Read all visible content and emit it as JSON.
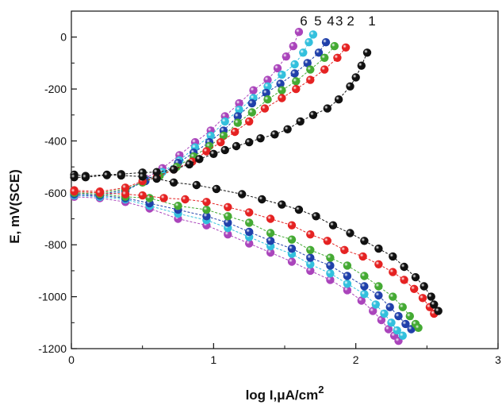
{
  "chart_data": {
    "type": "scatter",
    "xlabel": "log I,μA/cm",
    "xlabel_sup": "2",
    "ylabel": "E, mV(SCE)",
    "xlim": [
      0,
      3
    ],
    "ylim": [
      -1200,
      100
    ],
    "x_ticks": [
      0,
      1,
      2,
      3
    ],
    "y_ticks": [
      0,
      -200,
      -400,
      -600,
      -800,
      -1000,
      -1200
    ],
    "curve_labels": [
      "6",
      "5",
      "4",
      "3",
      "2",
      "1"
    ],
    "grid": false,
    "series": [
      {
        "name": "1",
        "color": "#111111",
        "anodic": [
          [
            0.02,
            -530
          ],
          [
            0.1,
            -535
          ],
          [
            0.25,
            -530
          ],
          [
            0.35,
            -528
          ],
          [
            0.5,
            -522
          ],
          [
            0.6,
            -520
          ],
          [
            0.72,
            -510
          ],
          [
            0.83,
            -490
          ],
          [
            0.9,
            -470
          ],
          [
            1.0,
            -450
          ],
          [
            1.08,
            -435
          ],
          [
            1.16,
            -420
          ],
          [
            1.25,
            -405
          ],
          [
            1.33,
            -390
          ],
          [
            1.43,
            -375
          ],
          [
            1.52,
            -355
          ],
          [
            1.61,
            -325
          ],
          [
            1.7,
            -300
          ],
          [
            1.8,
            -275
          ],
          [
            1.88,
            -240
          ],
          [
            1.96,
            -190
          ],
          [
            2.0,
            -155
          ],
          [
            2.04,
            -110
          ],
          [
            2.08,
            -60
          ]
        ],
        "cathodic": [
          [
            0.02,
            -540
          ],
          [
            0.1,
            -540
          ],
          [
            0.25,
            -532
          ],
          [
            0.35,
            -533
          ],
          [
            0.5,
            -537
          ],
          [
            0.6,
            -545
          ],
          [
            0.72,
            -560
          ],
          [
            0.88,
            -570
          ],
          [
            1.02,
            -585
          ],
          [
            1.2,
            -605
          ],
          [
            1.34,
            -625
          ],
          [
            1.48,
            -645
          ],
          [
            1.6,
            -665
          ],
          [
            1.72,
            -690
          ],
          [
            1.84,
            -725
          ],
          [
            1.96,
            -755
          ],
          [
            2.06,
            -785
          ],
          [
            2.16,
            -815
          ],
          [
            2.26,
            -845
          ],
          [
            2.34,
            -885
          ],
          [
            2.42,
            -925
          ],
          [
            2.48,
            -960
          ],
          [
            2.53,
            -1000
          ],
          [
            2.55,
            -1030
          ],
          [
            2.58,
            -1055
          ]
        ]
      },
      {
        "name": "2",
        "color": "#e52222",
        "anodic": [
          [
            0.02,
            -590
          ],
          [
            0.2,
            -595
          ],
          [
            0.38,
            -580
          ],
          [
            0.5,
            -555
          ],
          [
            0.6,
            -540
          ],
          [
            0.72,
            -510
          ],
          [
            0.85,
            -480
          ],
          [
            0.95,
            -440
          ],
          [
            1.05,
            -405
          ],
          [
            1.15,
            -365
          ],
          [
            1.25,
            -325
          ],
          [
            1.36,
            -275
          ],
          [
            1.48,
            -235
          ],
          [
            1.58,
            -200
          ],
          [
            1.68,
            -165
          ],
          [
            1.78,
            -125
          ],
          [
            1.87,
            -80
          ],
          [
            1.93,
            -40
          ]
        ],
        "cathodic": [
          [
            0.02,
            -595
          ],
          [
            0.2,
            -600
          ],
          [
            0.38,
            -605
          ],
          [
            0.5,
            -610
          ],
          [
            0.65,
            -620
          ],
          [
            0.8,
            -625
          ],
          [
            0.95,
            -635
          ],
          [
            1.1,
            -655
          ],
          [
            1.25,
            -675
          ],
          [
            1.4,
            -700
          ],
          [
            1.55,
            -725
          ],
          [
            1.68,
            -760
          ],
          [
            1.8,
            -785
          ],
          [
            1.92,
            -820
          ],
          [
            2.05,
            -845
          ],
          [
            2.16,
            -875
          ],
          [
            2.26,
            -905
          ],
          [
            2.34,
            -935
          ],
          [
            2.41,
            -970
          ],
          [
            2.47,
            -1005
          ],
          [
            2.52,
            -1040
          ],
          [
            2.55,
            -1065
          ]
        ]
      },
      {
        "name": "3",
        "color": "#44aa33",
        "anodic": [
          [
            0.02,
            -595
          ],
          [
            0.2,
            -600
          ],
          [
            0.38,
            -585
          ],
          [
            0.5,
            -560
          ],
          [
            0.62,
            -535
          ],
          [
            0.74,
            -500
          ],
          [
            0.86,
            -460
          ],
          [
            0.97,
            -420
          ],
          [
            1.07,
            -380
          ],
          [
            1.17,
            -330
          ],
          [
            1.27,
            -290
          ],
          [
            1.38,
            -240
          ],
          [
            1.48,
            -205
          ],
          [
            1.58,
            -170
          ],
          [
            1.68,
            -125
          ],
          [
            1.78,
            -80
          ],
          [
            1.85,
            -35
          ]
        ],
        "cathodic": [
          [
            0.02,
            -600
          ],
          [
            0.2,
            -605
          ],
          [
            0.38,
            -615
          ],
          [
            0.55,
            -620
          ],
          [
            0.75,
            -650
          ],
          [
            0.95,
            -665
          ],
          [
            1.1,
            -690
          ],
          [
            1.25,
            -715
          ],
          [
            1.4,
            -755
          ],
          [
            1.55,
            -780
          ],
          [
            1.68,
            -820
          ],
          [
            1.82,
            -850
          ],
          [
            1.94,
            -880
          ],
          [
            2.06,
            -920
          ],
          [
            2.16,
            -960
          ],
          [
            2.26,
            -1000
          ],
          [
            2.33,
            -1040
          ],
          [
            2.38,
            -1075
          ],
          [
            2.42,
            -1105
          ],
          [
            2.44,
            -1120
          ]
        ]
      },
      {
        "name": "4",
        "color": "#2040aa",
        "anodic": [
          [
            0.02,
            -600
          ],
          [
            0.2,
            -605
          ],
          [
            0.38,
            -590
          ],
          [
            0.52,
            -555
          ],
          [
            0.62,
            -535
          ],
          [
            0.75,
            -485
          ],
          [
            0.86,
            -445
          ],
          [
            0.97,
            -405
          ],
          [
            1.07,
            -360
          ],
          [
            1.17,
            -305
          ],
          [
            1.27,
            -255
          ],
          [
            1.37,
            -215
          ],
          [
            1.47,
            -180
          ],
          [
            1.57,
            -140
          ],
          [
            1.66,
            -100
          ],
          [
            1.74,
            -60
          ],
          [
            1.79,
            -20
          ]
        ],
        "cathodic": [
          [
            0.02,
            -605
          ],
          [
            0.2,
            -610
          ],
          [
            0.38,
            -620
          ],
          [
            0.55,
            -640
          ],
          [
            0.75,
            -665
          ],
          [
            0.95,
            -690
          ],
          [
            1.1,
            -715
          ],
          [
            1.25,
            -750
          ],
          [
            1.4,
            -785
          ],
          [
            1.55,
            -815
          ],
          [
            1.68,
            -850
          ],
          [
            1.82,
            -880
          ],
          [
            1.94,
            -920
          ],
          [
            2.06,
            -960
          ],
          [
            2.16,
            -995
          ],
          [
            2.24,
            -1040
          ],
          [
            2.3,
            -1075
          ],
          [
            2.35,
            -1105
          ],
          [
            2.39,
            -1125
          ]
        ]
      },
      {
        "name": "5",
        "color": "#33c0dd",
        "anodic": [
          [
            0.02,
            -605
          ],
          [
            0.2,
            -610
          ],
          [
            0.38,
            -595
          ],
          [
            0.52,
            -550
          ],
          [
            0.64,
            -520
          ],
          [
            0.76,
            -475
          ],
          [
            0.87,
            -425
          ],
          [
            0.98,
            -380
          ],
          [
            1.08,
            -325
          ],
          [
            1.18,
            -280
          ],
          [
            1.28,
            -235
          ],
          [
            1.38,
            -190
          ],
          [
            1.48,
            -145
          ],
          [
            1.57,
            -105
          ],
          [
            1.63,
            -60
          ],
          [
            1.67,
            -20
          ],
          [
            1.7,
            10
          ]
        ],
        "cathodic": [
          [
            0.02,
            -610
          ],
          [
            0.2,
            -615
          ],
          [
            0.38,
            -625
          ],
          [
            0.55,
            -650
          ],
          [
            0.75,
            -680
          ],
          [
            0.95,
            -705
          ],
          [
            1.1,
            -735
          ],
          [
            1.25,
            -770
          ],
          [
            1.4,
            -805
          ],
          [
            1.55,
            -835
          ],
          [
            1.68,
            -875
          ],
          [
            1.82,
            -910
          ],
          [
            1.94,
            -950
          ],
          [
            2.06,
            -990
          ],
          [
            2.14,
            -1030
          ],
          [
            2.2,
            -1065
          ],
          [
            2.25,
            -1100
          ],
          [
            2.29,
            -1130
          ],
          [
            2.33,
            -1150
          ]
        ]
      },
      {
        "name": "6",
        "color": "#aa44bb",
        "anodic": [
          [
            0.02,
            -610
          ],
          [
            0.2,
            -612
          ],
          [
            0.38,
            -595
          ],
          [
            0.52,
            -545
          ],
          [
            0.64,
            -505
          ],
          [
            0.76,
            -455
          ],
          [
            0.87,
            -405
          ],
          [
            0.98,
            -360
          ],
          [
            1.08,
            -305
          ],
          [
            1.18,
            -255
          ],
          [
            1.28,
            -205
          ],
          [
            1.38,
            -165
          ],
          [
            1.45,
            -120
          ],
          [
            1.51,
            -75
          ],
          [
            1.56,
            -35
          ],
          [
            1.6,
            20
          ]
        ],
        "cathodic": [
          [
            0.02,
            -615
          ],
          [
            0.2,
            -620
          ],
          [
            0.38,
            -635
          ],
          [
            0.55,
            -660
          ],
          [
            0.75,
            -700
          ],
          [
            0.95,
            -725
          ],
          [
            1.1,
            -760
          ],
          [
            1.25,
            -795
          ],
          [
            1.4,
            -830
          ],
          [
            1.55,
            -865
          ],
          [
            1.68,
            -900
          ],
          [
            1.82,
            -935
          ],
          [
            1.94,
            -975
          ],
          [
            2.04,
            -1015
          ],
          [
            2.12,
            -1055
          ],
          [
            2.18,
            -1090
          ],
          [
            2.23,
            -1125
          ],
          [
            2.27,
            -1150
          ],
          [
            2.3,
            -1170
          ]
        ]
      }
    ]
  }
}
